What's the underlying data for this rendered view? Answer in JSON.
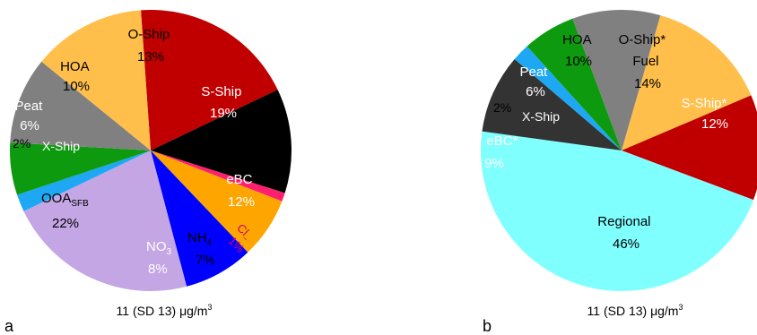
{
  "chart_data": [
    {
      "type": "pie",
      "panel_label": "a",
      "caption": {
        "main": "11 (SD 13) μg/m",
        "sup": "3"
      },
      "slices": [
        {
          "name": "S-Ship",
          "value": 19,
          "label": "19%",
          "color": "#c00000"
        },
        {
          "name": "eBC",
          "value": 12,
          "label": "12%",
          "color": "#000000"
        },
        {
          "name": "Cl",
          "value": 1,
          "label": "1%",
          "color": "#ff1f6f"
        },
        {
          "name": "NH4",
          "value": 7,
          "label": "7%",
          "color": "#ffa500"
        },
        {
          "name": "NO3",
          "value": 8,
          "label": "8%",
          "color": "#0000ff"
        },
        {
          "name": "OOASFB",
          "value": 22,
          "label": "22%",
          "color": "#c3a6e3"
        },
        {
          "name": "X-Ship",
          "value": 2,
          "label": "2%",
          "color": "#1ea8f4"
        },
        {
          "name": "Peat",
          "value": 6,
          "label": "6%",
          "color": "#0e9a0e"
        },
        {
          "name": "HOA",
          "value": 10,
          "label": "10%",
          "color": "#808080"
        },
        {
          "name": "O-Ship",
          "value": 13,
          "label": "13%",
          "color": "#ffbf4a"
        }
      ]
    },
    {
      "type": "pie",
      "panel_label": "b",
      "caption": {
        "main": "11 (SD 13) μg/m",
        "sup": "3"
      },
      "slices": [
        {
          "name": "O-Ship* Fuel",
          "value": 14,
          "label": "14%",
          "color": "#ffbf4a"
        },
        {
          "name": "S-Ship*",
          "value": 12,
          "label": "12%",
          "color": "#c00000"
        },
        {
          "name": "Regional",
          "value": 46,
          "label": "46%",
          "color": "#80ffff"
        },
        {
          "name": "eBC*",
          "value": 9,
          "label": "9%",
          "color": "#333333"
        },
        {
          "name": "X-Ship",
          "value": 2,
          "label": "2%",
          "color": "#1ea8f4"
        },
        {
          "name": "Peat",
          "value": 6,
          "label": "6%",
          "color": "#0e9a0e"
        },
        {
          "name": "HOA",
          "value": 10,
          "label": "10%",
          "color": "#808080"
        }
      ]
    }
  ]
}
